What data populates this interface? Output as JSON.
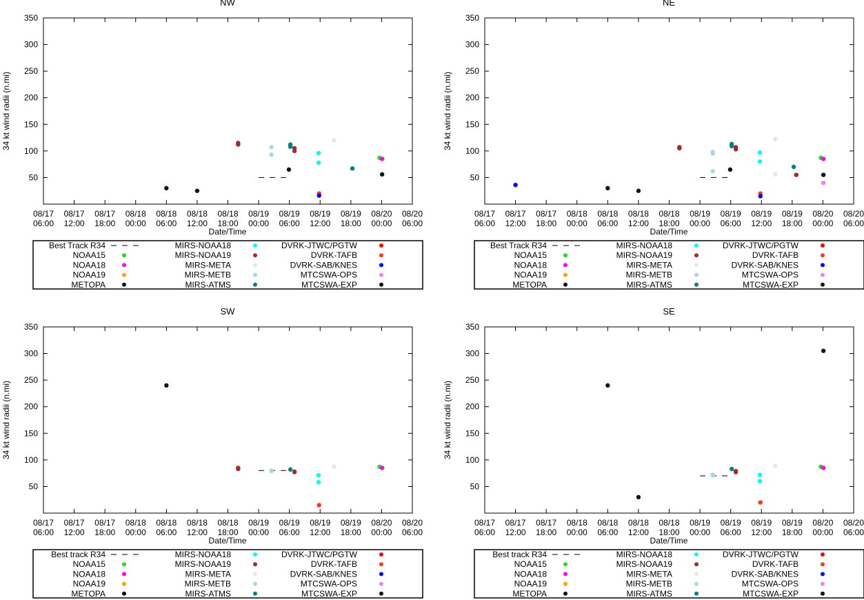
{
  "chart_data": [
    {
      "type": "scatter",
      "title": "NW",
      "xlabel": "Date/Time",
      "ylabel": "34 kt wind radii (n.mi)",
      "xlim": [
        0,
        72
      ],
      "ylim": [
        0,
        350
      ],
      "yticks": [
        50,
        100,
        150,
        200,
        250,
        300,
        350
      ],
      "xticks": [
        {
          "t": 0,
          "date": "08/17",
          "time": "06:00"
        },
        {
          "t": 6,
          "date": "08/17",
          "time": "12:00"
        },
        {
          "t": 12,
          "date": "08/17",
          "time": "18:00"
        },
        {
          "t": 18,
          "date": "08/18",
          "time": "00:00"
        },
        {
          "t": 24,
          "date": "08/18",
          "time": "06:00"
        },
        {
          "t": 30,
          "date": "08/18",
          "time": "12:00"
        },
        {
          "t": 36,
          "date": "08/18",
          "time": "18:00"
        },
        {
          "t": 42,
          "date": "08/19",
          "time": "00:00"
        },
        {
          "t": 48,
          "date": "08/19",
          "time": "06:00"
        },
        {
          "t": 54,
          "date": "08/19",
          "time": "12:00"
        },
        {
          "t": 60,
          "date": "08/19",
          "time": "18:00"
        },
        {
          "t": 66,
          "date": "08/20",
          "time": "00:00"
        },
        {
          "t": 72,
          "date": "08/20",
          "time": "06:00"
        }
      ],
      "best_track": {
        "t0": 42,
        "t1": 48,
        "value": 50
      },
      "legend_labels": {
        "best": "Best Track R34",
        "NOAA15": "NOAA15",
        "NOAA18": "NOAA18",
        "NOAA19": "NOAA19",
        "METOPA": "METOPA",
        "MIRS-NOAA18": "MIRS-NOAA18",
        "MIRS-NOAA19": "MIRS-NOAA19",
        "MIRS-META": "MIRS-META",
        "MIRS-METB": "MIRS-METB",
        "MIRS-ATMS": "MIRS-ATMS",
        "DVRK-JTWC/PGTW": "DVRK-JTWC/PGTW",
        "DVRK-TAFB": "DVRK-TAFB",
        "DVRK-SAB/KNES": "DVRK-SAB/KNES",
        "MTCSWA-OPS": "MTCSWA-OPS",
        "MTCSWA-EXP": "MTCSWA-EXP"
      },
      "points": [
        {
          "series": "METOPA",
          "t": 24,
          "v": 30
        },
        {
          "series": "METOPA",
          "t": 30,
          "v": 25
        },
        {
          "series": "MIRS-NOAA19",
          "t": 38,
          "v": 115
        },
        {
          "series": "MIRS-NOAA19",
          "t": 38,
          "v": 112
        },
        {
          "series": "MIRS-METB",
          "t": 44.5,
          "v": 107
        },
        {
          "series": "MIRS-METB",
          "t": 44.5,
          "v": 93
        },
        {
          "series": "METOPA",
          "t": 47.9,
          "v": 65
        },
        {
          "series": "MIRS-ATMS",
          "t": 48.2,
          "v": 112
        },
        {
          "series": "MIRS-ATMS",
          "t": 48.2,
          "v": 108
        },
        {
          "series": "MIRS-NOAA19",
          "t": 49,
          "v": 105
        },
        {
          "series": "MIRS-NOAA19",
          "t": 49,
          "v": 100
        },
        {
          "series": "MIRS-NOAA18",
          "t": 53.7,
          "v": 96
        },
        {
          "series": "MIRS-NOAA18",
          "t": 53.7,
          "v": 78
        },
        {
          "series": "DVRK-TAFB",
          "t": 53.8,
          "v": 20
        },
        {
          "series": "DVRK-SAB/KNES",
          "t": 53.8,
          "v": 16
        },
        {
          "series": "MIRS-META",
          "t": 56.7,
          "v": 120
        },
        {
          "series": "MIRS-ATMS",
          "t": 60.3,
          "v": 67
        },
        {
          "series": "NOAA15",
          "t": 65.6,
          "v": 87
        },
        {
          "series": "NOAA18",
          "t": 66.1,
          "v": 85
        },
        {
          "series": "METOPA",
          "t": 66.1,
          "v": 56
        }
      ]
    },
    {
      "type": "scatter",
      "title": "NE",
      "xlabel": "Date/Time",
      "ylabel": "34 kt wind radii (n.mi)",
      "xlim": [
        0,
        72
      ],
      "ylim": [
        0,
        350
      ],
      "yticks": [
        50,
        100,
        150,
        200,
        250,
        300,
        350
      ],
      "xticks": [
        {
          "t": 0,
          "date": "08/17",
          "time": "06:00"
        },
        {
          "t": 6,
          "date": "08/17",
          "time": "12:00"
        },
        {
          "t": 12,
          "date": "08/17",
          "time": "18:00"
        },
        {
          "t": 18,
          "date": "08/18",
          "time": "00:00"
        },
        {
          "t": 24,
          "date": "08/18",
          "time": "06:00"
        },
        {
          "t": 30,
          "date": "08/18",
          "time": "12:00"
        },
        {
          "t": 36,
          "date": "08/18",
          "time": "18:00"
        },
        {
          "t": 42,
          "date": "08/19",
          "time": "00:00"
        },
        {
          "t": 48,
          "date": "08/19",
          "time": "06:00"
        },
        {
          "t": 54,
          "date": "08/19",
          "time": "12:00"
        },
        {
          "t": 60,
          "date": "08/19",
          "time": "18:00"
        },
        {
          "t": 66,
          "date": "08/20",
          "time": "00:00"
        },
        {
          "t": 72,
          "date": "08/20",
          "time": "06:00"
        }
      ],
      "best_track": {
        "t0": 42,
        "t1": 48,
        "value": 50
      },
      "legend_labels": {
        "best": "Best Track R34",
        "NOAA15": "NOAA15",
        "NOAA18": "NOAA18",
        "NOAA19": "NOAA19",
        "METOPA": "METOPA",
        "MIRS-NOAA18": "MIRS-NOAA18",
        "MIRS-NOAA19": "MIRS-NOAA19",
        "MIRS-META": "MIRS-META",
        "MIRS-METB": "MIRS-METB",
        "MIRS-ATMS": "MIRS-ATMS",
        "DVRK-JTWC/PGTW": "DVRK-JTWC/PGTW",
        "DVRK-TAFB": "DVRK-TAFB",
        "DVRK-SAB/KNES": "DVRK-SAB/KNES",
        "MTCSWA-OPS": "MTCSWA-OPS",
        "MTCSWA-EXP": "MTCSWA-EXP"
      },
      "points": [
        {
          "series": "DVRK-SAB/KNES",
          "t": 6,
          "v": 36
        },
        {
          "series": "METOPA",
          "t": 24,
          "v": 30
        },
        {
          "series": "METOPA",
          "t": 30,
          "v": 25
        },
        {
          "series": "MIRS-NOAA19",
          "t": 38,
          "v": 107
        },
        {
          "series": "MIRS-NOAA19",
          "t": 38,
          "v": 105
        },
        {
          "series": "MIRS-METB",
          "t": 44.5,
          "v": 98
        },
        {
          "series": "MIRS-METB",
          "t": 44.5,
          "v": 95
        },
        {
          "series": "MIRS-METB",
          "t": 44.5,
          "v": 62
        },
        {
          "series": "METOPA",
          "t": 47.9,
          "v": 65
        },
        {
          "series": "MIRS-ATMS",
          "t": 48.2,
          "v": 113
        },
        {
          "series": "MIRS-ATMS",
          "t": 48.2,
          "v": 109
        },
        {
          "series": "MIRS-NOAA19",
          "t": 49,
          "v": 107
        },
        {
          "series": "MIRS-NOAA19",
          "t": 49,
          "v": 103
        },
        {
          "series": "MIRS-NOAA18",
          "t": 53.7,
          "v": 97
        },
        {
          "series": "MIRS-NOAA18",
          "t": 53.7,
          "v": 80
        },
        {
          "series": "DVRK-TAFB",
          "t": 53.8,
          "v": 20
        },
        {
          "series": "DVRK-SAB/KNES",
          "t": 53.8,
          "v": 15
        },
        {
          "series": "MIRS-META",
          "t": 56.7,
          "v": 122
        },
        {
          "series": "MIRS-META",
          "t": 56.7,
          "v": 56
        },
        {
          "series": "MIRS-ATMS",
          "t": 60.3,
          "v": 70
        },
        {
          "series": "MIRS-NOAA19",
          "t": 60.8,
          "v": 55
        },
        {
          "series": "NOAA15",
          "t": 65.6,
          "v": 87
        },
        {
          "series": "NOAA18",
          "t": 66.1,
          "v": 85
        },
        {
          "series": "METOPA",
          "t": 66.1,
          "v": 55
        },
        {
          "series": "MTCSWA-OPS",
          "t": 66.1,
          "v": 40
        }
      ]
    },
    {
      "type": "scatter",
      "title": "SW",
      "xlabel": "Date/Time",
      "ylabel": "34 kt wind radii (n.mi)",
      "xlim": [
        0,
        72
      ],
      "ylim": [
        0,
        350
      ],
      "yticks": [
        50,
        100,
        150,
        200,
        250,
        300,
        350
      ],
      "xticks": [
        {
          "t": 0,
          "date": "08/17",
          "time": "06:00"
        },
        {
          "t": 6,
          "date": "08/17",
          "time": "12:00"
        },
        {
          "t": 12,
          "date": "08/17",
          "time": "18:00"
        },
        {
          "t": 18,
          "date": "08/18",
          "time": "00:00"
        },
        {
          "t": 24,
          "date": "08/18",
          "time": "06:00"
        },
        {
          "t": 30,
          "date": "08/18",
          "time": "12:00"
        },
        {
          "t": 36,
          "date": "08/18",
          "time": "18:00"
        },
        {
          "t": 42,
          "date": "08/19",
          "time": "00:00"
        },
        {
          "t": 48,
          "date": "08/19",
          "time": "06:00"
        },
        {
          "t": 54,
          "date": "08/19",
          "time": "12:00"
        },
        {
          "t": 60,
          "date": "08/19",
          "time": "18:00"
        },
        {
          "t": 66,
          "date": "08/20",
          "time": "00:00"
        },
        {
          "t": 72,
          "date": "08/20",
          "time": "06:00"
        }
      ],
      "best_track": {
        "t0": 42,
        "t1": 48,
        "value": 80
      },
      "legend_labels": {
        "best": "Best track R34",
        "NOAA15": "NOAA15",
        "NOAA18": "NOAA18",
        "NOAA19": "NOAA19",
        "METOPA": "METOPA",
        "MIRS-NOAA18": "MIRS-NOAA18",
        "MIRS-NOAA19": "MIRS-NOAA19",
        "MIRS-META": "MIRS-META",
        "MIRS-METB": "MIRS-METB",
        "MIRS-ATMS": "MIRS-ATMS",
        "DVRK-JTWC/PGTW": "DVRK-JTWC/PGTW",
        "DVRK-TAFB": "DVRK-TAFB",
        "DVRK-SAB/KNES": "DVRK-SAB/KNES",
        "MTCSWA-OPS": "MTCSWA-OPS",
        "MTCSWA-EXP": "MTCSWA-EXP"
      },
      "points": [
        {
          "series": "METOPA",
          "t": 24,
          "v": 240
        },
        {
          "series": "MIRS-NOAA19",
          "t": 38,
          "v": 85
        },
        {
          "series": "MIRS-NOAA19",
          "t": 38,
          "v": 83
        },
        {
          "series": "MIRS-METB",
          "t": 44.5,
          "v": 80
        },
        {
          "series": "MIRS-METB",
          "t": 44.5,
          "v": 79
        },
        {
          "series": "MIRS-ATMS",
          "t": 48.2,
          "v": 82
        },
        {
          "series": "MIRS-NOAA19",
          "t": 49,
          "v": 78
        },
        {
          "series": "MIRS-NOAA19",
          "t": 49,
          "v": 77
        },
        {
          "series": "MIRS-NOAA18",
          "t": 53.7,
          "v": 71
        },
        {
          "series": "MIRS-NOAA18",
          "t": 53.7,
          "v": 58
        },
        {
          "series": "DVRK-TAFB",
          "t": 53.8,
          "v": 15
        },
        {
          "series": "MIRS-META",
          "t": 56.7,
          "v": 87
        },
        {
          "series": "NOAA15",
          "t": 65.6,
          "v": 87
        },
        {
          "series": "NOAA18",
          "t": 66.1,
          "v": 85
        }
      ]
    },
    {
      "type": "scatter",
      "title": "SE",
      "xlabel": "Date/Time",
      "ylabel": "34 kt wind radii (n.mi)",
      "xlim": [
        0,
        72
      ],
      "ylim": [
        0,
        350
      ],
      "yticks": [
        50,
        100,
        150,
        200,
        250,
        300,
        350
      ],
      "xticks": [
        {
          "t": 0,
          "date": "08/17",
          "time": "06:00"
        },
        {
          "t": 6,
          "date": "08/17",
          "time": "12:00"
        },
        {
          "t": 12,
          "date": "08/17",
          "time": "18:00"
        },
        {
          "t": 18,
          "date": "08/18",
          "time": "00:00"
        },
        {
          "t": 24,
          "date": "08/18",
          "time": "06:00"
        },
        {
          "t": 30,
          "date": "08/18",
          "time": "12:00"
        },
        {
          "t": 36,
          "date": "08/18",
          "time": "18:00"
        },
        {
          "t": 42,
          "date": "08/19",
          "time": "00:00"
        },
        {
          "t": 48,
          "date": "08/19",
          "time": "06:00"
        },
        {
          "t": 54,
          "date": "08/19",
          "time": "12:00"
        },
        {
          "t": 60,
          "date": "08/19",
          "time": "18:00"
        },
        {
          "t": 66,
          "date": "08/20",
          "time": "00:00"
        },
        {
          "t": 72,
          "date": "08/20",
          "time": "06:00"
        }
      ],
      "best_track": {
        "t0": 42,
        "t1": 48,
        "value": 70
      },
      "legend_labels": {
        "best": "Best track R34",
        "NOAA15": "NOAA15",
        "NOAA18": "NOAA18",
        "NOAA19": "NOAA19",
        "METOPA": "METOPA",
        "MIRS-NOAA18": "MIRS-NOAA18",
        "MIRS-NOAA19": "MIRS-NOAA19",
        "MIRS-META": "MIRS-META",
        "MIRS-METB": "MIRS-METB",
        "MIRS-ATMS": "MIRS-ATMS",
        "DVRK-JTWC/PGTW": "DVRK-JTWC/PGTW",
        "DVRK-TAFB": "DVRK-TAFB",
        "DVRK-SAB/KNES": "DVRK-SAB/KNES",
        "MTCSWA-OPS": "MTCSWA-OPS",
        "MTCSWA-EXP": "MTCSWA-EXP"
      },
      "points": [
        {
          "series": "METOPA",
          "t": 24,
          "v": 240
        },
        {
          "series": "METOPA",
          "t": 30,
          "v": 30
        },
        {
          "series": "MIRS-METB",
          "t": 44.5,
          "v": 72
        },
        {
          "series": "MIRS-METB",
          "t": 44.5,
          "v": 71
        },
        {
          "series": "MIRS-ATMS",
          "t": 48.2,
          "v": 83
        },
        {
          "series": "MIRS-NOAA19",
          "t": 49,
          "v": 79
        },
        {
          "series": "MIRS-NOAA19",
          "t": 49,
          "v": 77
        },
        {
          "series": "MIRS-NOAA18",
          "t": 53.7,
          "v": 72
        },
        {
          "series": "MIRS-NOAA18",
          "t": 53.7,
          "v": 60
        },
        {
          "series": "DVRK-TAFB",
          "t": 53.8,
          "v": 20
        },
        {
          "series": "MIRS-META",
          "t": 56.7,
          "v": 89
        },
        {
          "series": "NOAA15",
          "t": 65.6,
          "v": 87
        },
        {
          "series": "NOAA18",
          "t": 66.1,
          "v": 85
        },
        {
          "series": "METOPA",
          "t": 66.1,
          "v": 305
        }
      ]
    }
  ],
  "series_colors": {
    "NOAA15": "#22dd22",
    "NOAA18": "#ff00ff",
    "NOAA19": "#ffa500",
    "METOPA": "#111111",
    "MIRS-NOAA18": "#00ffff",
    "MIRS-NOAA19": "#a52a2a",
    "MIRS-META": "#e6e6e6",
    "MIRS-METB": "#a8d8e6",
    "MIRS-ATMS": "#008080",
    "DVRK-JTWC/PGTW": "#ff0000",
    "DVRK-TAFB": "#ff3a1a",
    "DVRK-SAB/KNES": "#0000ff",
    "MTCSWA-OPS": "#ee82ee",
    "MTCSWA-EXP": "#111111"
  }
}
